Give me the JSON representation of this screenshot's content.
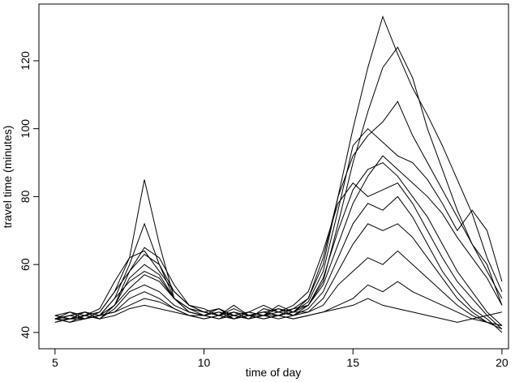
{
  "chart_data": {
    "type": "line",
    "xlabel": "time of day",
    "ylabel": "travel time (minutes)",
    "xlim": [
      4.46,
      20.22
    ],
    "ylim": [
      35.2,
      136.7
    ],
    "xticks": [
      5,
      10,
      15,
      20
    ],
    "yticks": [
      40,
      60,
      80,
      100,
      120
    ],
    "x": [
      5,
      5.5,
      6,
      6.5,
      7,
      7.5,
      8,
      8.5,
      9,
      9.5,
      10,
      10.5,
      11,
      11.5,
      12,
      12.5,
      13,
      13.5,
      14,
      14.5,
      15,
      15.5,
      16,
      16.5,
      17,
      17.5,
      18,
      18.5,
      19,
      19.5,
      20
    ],
    "series": [
      {
        "color": "#000000",
        "values": [
          44,
          45,
          44,
          46,
          52,
          62,
          85,
          66,
          50,
          46,
          45,
          47,
          44,
          46,
          45,
          48,
          46,
          50,
          60,
          80,
          100,
          118,
          133,
          122,
          112,
          104,
          95,
          85,
          75,
          62,
          52
        ]
      },
      {
        "color": "#000000",
        "values": [
          45,
          44,
          46,
          45,
          50,
          60,
          72,
          60,
          50,
          47,
          46,
          45,
          48,
          45,
          46,
          47,
          45,
          48,
          55,
          72,
          90,
          105,
          118,
          124,
          115,
          100,
          88,
          76,
          66,
          58,
          50
        ]
      },
      {
        "color": "#000000",
        "values": [
          44,
          46,
          45,
          47,
          55,
          62,
          64,
          58,
          52,
          48,
          46,
          47,
          45,
          46,
          48,
          46,
          47,
          50,
          62,
          80,
          92,
          98,
          102,
          108,
          98,
          90,
          82,
          74,
          66,
          60,
          48
        ]
      },
      {
        "color": "#000000",
        "values": [
          43,
          44,
          45,
          44,
          48,
          56,
          60,
          57,
          50,
          46,
          45,
          46,
          44,
          45,
          46,
          45,
          46,
          48,
          56,
          70,
          82,
          88,
          90,
          86,
          80,
          74,
          66,
          58,
          52,
          46,
          42
        ]
      },
      {
        "color": "#000000",
        "values": [
          44,
          43,
          45,
          46,
          52,
          58,
          63,
          60,
          52,
          48,
          47,
          45,
          46,
          44,
          47,
          46,
          48,
          52,
          64,
          78,
          84,
          80,
          82,
          84,
          78,
          70,
          62,
          55,
          50,
          45,
          41
        ]
      },
      {
        "color": "#000000",
        "values": [
          45,
          46,
          44,
          45,
          50,
          55,
          58,
          56,
          50,
          47,
          45,
          46,
          45,
          44,
          45,
          46,
          45,
          47,
          52,
          62,
          72,
          78,
          76,
          80,
          74,
          66,
          58,
          52,
          47,
          44,
          40
        ]
      },
      {
        "color": "#000000",
        "values": [
          44,
          45,
          46,
          44,
          47,
          52,
          54,
          52,
          48,
          46,
          45,
          44,
          46,
          45,
          44,
          45,
          46,
          46,
          50,
          58,
          66,
          72,
          70,
          72,
          68,
          62,
          56,
          50,
          46,
          43,
          41
        ]
      },
      {
        "color": "#000000",
        "values": [
          43,
          44,
          44,
          45,
          46,
          50,
          52,
          50,
          47,
          45,
          44,
          45,
          44,
          45,
          45,
          44,
          45,
          46,
          48,
          54,
          58,
          62,
          60,
          64,
          60,
          56,
          52,
          48,
          45,
          43,
          42
        ]
      },
      {
        "color": "#000000",
        "values": [
          44,
          44,
          45,
          44,
          45,
          47,
          48,
          47,
          46,
          45,
          45,
          44,
          45,
          44,
          45,
          45,
          44,
          45,
          46,
          48,
          50,
          54,
          52,
          55,
          52,
          50,
          48,
          46,
          44,
          43,
          42
        ]
      },
      {
        "color": "#000000",
        "values": [
          45,
          44,
          44,
          45,
          48,
          58,
          65,
          62,
          54,
          48,
          46,
          47,
          45,
          46,
          45,
          47,
          46,
          49,
          58,
          76,
          95,
          100,
          96,
          92,
          90,
          85,
          78,
          70,
          76,
          70,
          55
        ]
      },
      {
        "color": "#000000",
        "values": [
          44,
          45,
          46,
          45,
          48,
          53,
          57,
          55,
          50,
          47,
          46,
          45,
          47,
          45,
          46,
          45,
          47,
          48,
          54,
          66,
          78,
          86,
          92,
          88,
          84,
          80,
          75,
          68,
          62,
          56,
          48
        ]
      },
      {
        "color": "#000000",
        "values": [
          44,
          43,
          44,
          45,
          46,
          48,
          50,
          49,
          47,
          45,
          44,
          45,
          44,
          45,
          44,
          45,
          44,
          45,
          46,
          47,
          48,
          50,
          48,
          47,
          46,
          45,
          44,
          43,
          44,
          45,
          46
        ]
      }
    ]
  }
}
